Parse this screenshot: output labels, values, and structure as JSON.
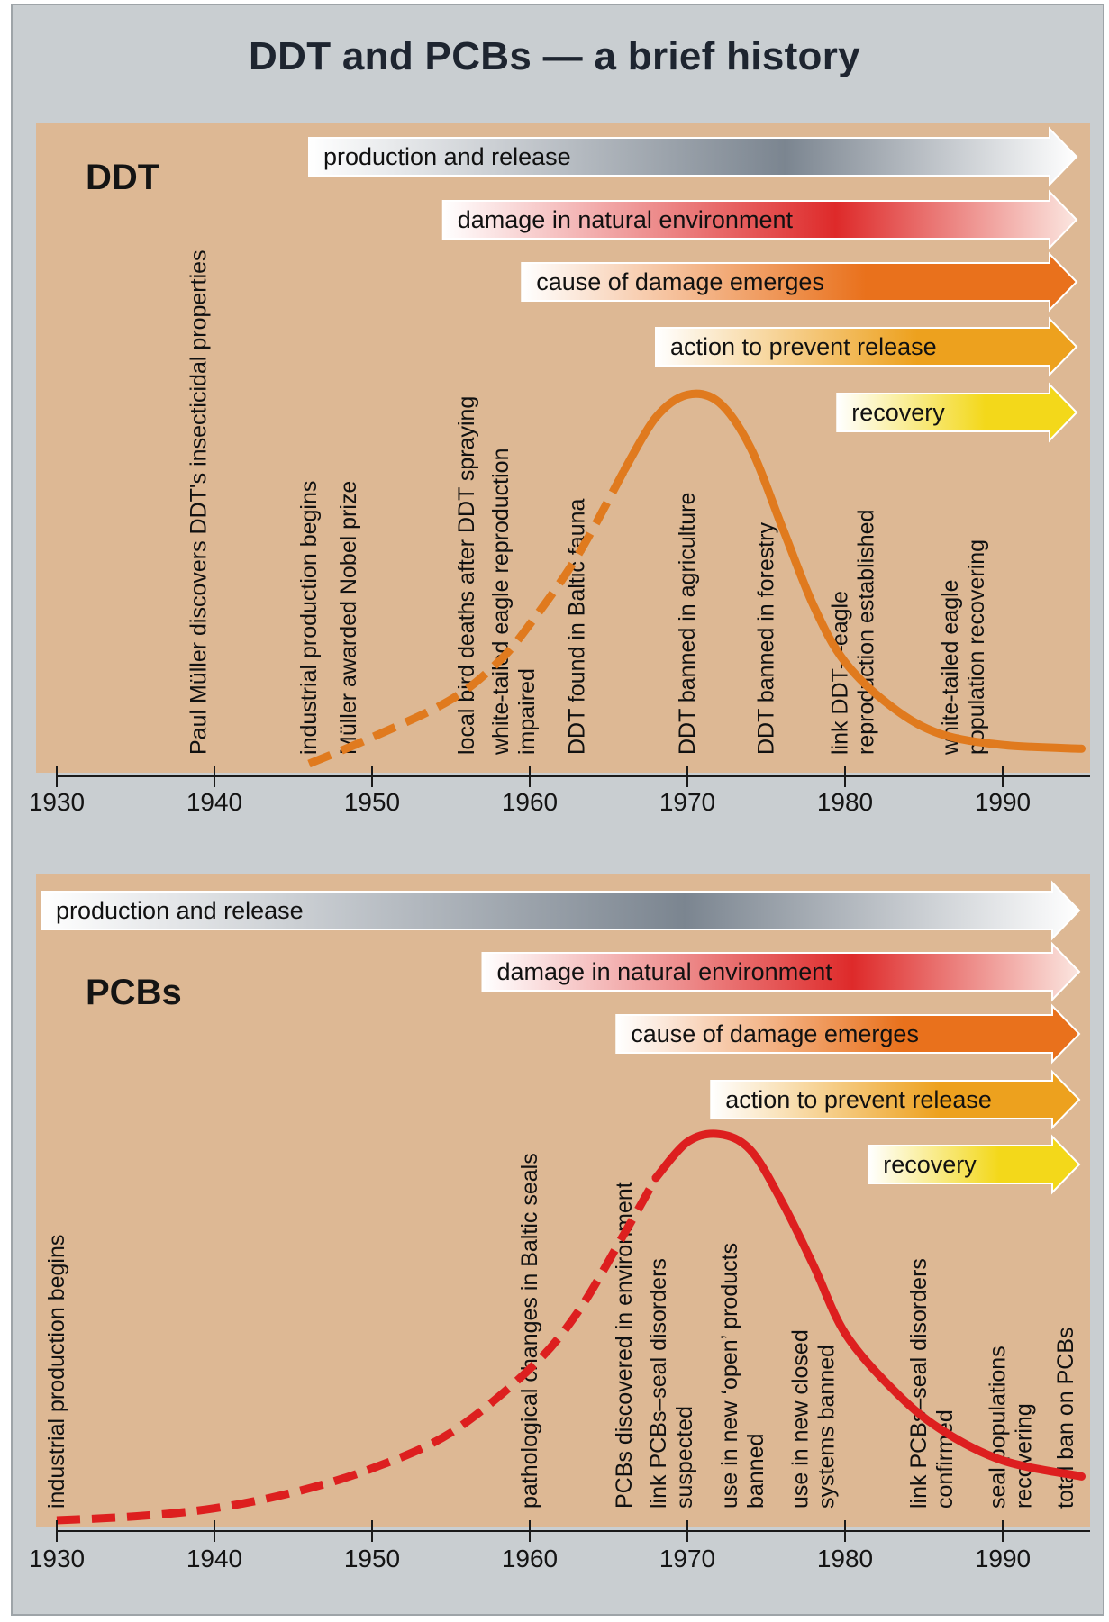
{
  "title": "DDT and PCBs — a brief history",
  "chart_data": [
    {
      "type": "line",
      "label": "DDT",
      "xlim": [
        1930,
        1995
      ],
      "ticks": [
        1930,
        1940,
        1950,
        1960,
        1970,
        1980,
        1990
      ],
      "curve_color": "#e07a1e",
      "series": [
        {
          "x": [
            1946,
            1950,
            1955,
            1958,
            1960,
            1963,
            1966,
            1968,
            1970,
            1972,
            1974,
            1976,
            1978,
            1980,
            1983,
            1986,
            1990,
            1995
          ],
          "y": [
            0.0,
            0.07,
            0.17,
            0.27,
            0.37,
            0.55,
            0.78,
            0.92,
            0.98,
            0.96,
            0.84,
            0.63,
            0.42,
            0.27,
            0.15,
            0.08,
            0.05,
            0.04
          ],
          "dashed_until": 1966
        }
      ],
      "phases": [
        {
          "label": "production and release",
          "start": 1946,
          "color": "#7b8590"
        },
        {
          "label": "damage in natural environment",
          "start": 1954.5,
          "color": "#de2a2a"
        },
        {
          "label": "cause of damage emerges",
          "start": 1959.5,
          "color": "#e9711c"
        },
        {
          "label": "action to prevent release",
          "start": 1968,
          "color": "#eda11e"
        },
        {
          "label": "recovery",
          "start": 1979.5,
          "color": "#f3d81a"
        }
      ],
      "events": [
        {
          "x": 1939,
          "lines": [
            "Paul Müller discovers DDT's insecticidal properties"
          ]
        },
        {
          "x": 1946,
          "lines": [
            "industrial production begins"
          ]
        },
        {
          "x": 1948.5,
          "lines": [
            "Müller awarded Nobel prize"
          ]
        },
        {
          "x": 1956,
          "lines": [
            "local bird deaths after DDT spraying"
          ]
        },
        {
          "x": 1959,
          "lines": [
            "white-tailed eagle reproduction",
            "impaired"
          ]
        },
        {
          "x": 1963,
          "lines": [
            "DDT found in Baltic fauna"
          ]
        },
        {
          "x": 1970,
          "lines": [
            "DDT banned in agriculture"
          ]
        },
        {
          "x": 1975,
          "lines": [
            "DDT banned in forestry"
          ]
        },
        {
          "x": 1980.5,
          "lines": [
            "link DDT—eagle",
            "reproduction established"
          ]
        },
        {
          "x": 1987.5,
          "lines": [
            "white-tailed eagle",
            "population recovering"
          ]
        }
      ]
    },
    {
      "type": "line",
      "label": "PCBs",
      "xlim": [
        1930,
        1995
      ],
      "ticks": [
        1930,
        1940,
        1950,
        1960,
        1970,
        1980,
        1990
      ],
      "curve_color": "#dd1f1f",
      "series": [
        {
          "x": [
            1930,
            1935,
            1940,
            1945,
            1950,
            1955,
            1960,
            1963,
            1966,
            1968,
            1970,
            1972,
            1974,
            1976,
            1978,
            1980,
            1983,
            1986,
            1990,
            1995
          ],
          "y": [
            0.0,
            0.01,
            0.03,
            0.07,
            0.13,
            0.22,
            0.38,
            0.52,
            0.72,
            0.86,
            0.95,
            0.97,
            0.93,
            0.8,
            0.64,
            0.47,
            0.33,
            0.23,
            0.15,
            0.11
          ],
          "dashed_until": 1967
        }
      ],
      "phases": [
        {
          "label": "production and release",
          "start": 1929,
          "color": "#7b8590"
        },
        {
          "label": "damage in natural environment",
          "start": 1957,
          "color": "#de2a2a"
        },
        {
          "label": "cause of damage emerges",
          "start": 1965.5,
          "color": "#e9711c"
        },
        {
          "label": "action to prevent release",
          "start": 1971.5,
          "color": "#eda11e"
        },
        {
          "label": "recovery",
          "start": 1981.5,
          "color": "#f3d81a"
        }
      ],
      "events": [
        {
          "x": 1930,
          "lines": [
            "industrial production begins"
          ]
        },
        {
          "x": 1960,
          "lines": [
            "pathological changes in Baltic seals"
          ]
        },
        {
          "x": 1966,
          "lines": [
            "PCBs discovered in environment"
          ]
        },
        {
          "x": 1969,
          "lines": [
            "link PCBs–seal disorders",
            "suspected"
          ]
        },
        {
          "x": 1973.5,
          "lines": [
            "use in new ‘open’ products",
            "banned"
          ]
        },
        {
          "x": 1978,
          "lines": [
            "use in new closed",
            "systems banned"
          ]
        },
        {
          "x": 1985.5,
          "lines": [
            "link PCBs–seal disorders",
            "confirmed"
          ]
        },
        {
          "x": 1990.5,
          "lines": [
            "seal populations",
            "recovering"
          ]
        },
        {
          "x": 1994,
          "lines": [
            "total ban on PCBs"
          ]
        }
      ]
    }
  ]
}
